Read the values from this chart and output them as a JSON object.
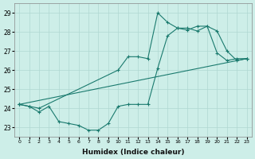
{
  "xlabel": "Humidex (Indice chaleur)",
  "bg_color": "#cdeee8",
  "line_color": "#1a7a6e",
  "grid_color": "#b0d8d2",
  "xlim": [
    -0.5,
    23.5
  ],
  "ylim": [
    22.5,
    29.5
  ],
  "xticks": [
    0,
    1,
    2,
    3,
    4,
    5,
    6,
    7,
    8,
    9,
    10,
    11,
    12,
    13,
    14,
    15,
    16,
    17,
    18,
    19,
    20,
    21,
    22,
    23
  ],
  "yticks": [
    23,
    24,
    25,
    26,
    27,
    28,
    29
  ],
  "series1_x": [
    0,
    1,
    2,
    3,
    4,
    5,
    6,
    7,
    8,
    9,
    10,
    11,
    12,
    13,
    14,
    15,
    16,
    17,
    18,
    19,
    20,
    21,
    22,
    23
  ],
  "series1_y": [
    24.2,
    24.1,
    23.8,
    24.1,
    23.3,
    23.2,
    23.1,
    22.85,
    22.85,
    23.2,
    24.1,
    24.2,
    24.2,
    24.2,
    26.1,
    27.8,
    28.2,
    28.2,
    28.05,
    28.3,
    26.9,
    26.5,
    26.6,
    26.6
  ],
  "series2_x": [
    0,
    1,
    2,
    10,
    11,
    12,
    13,
    14,
    15,
    16,
    17,
    18,
    19,
    20,
    21,
    22,
    23
  ],
  "series2_y": [
    24.2,
    24.1,
    24.0,
    26.0,
    26.7,
    26.7,
    26.6,
    29.0,
    28.5,
    28.2,
    28.1,
    28.3,
    28.3,
    28.05,
    27.0,
    26.5,
    26.6
  ],
  "series3_x": [
    0,
    23
  ],
  "series3_y": [
    24.2,
    26.6
  ]
}
